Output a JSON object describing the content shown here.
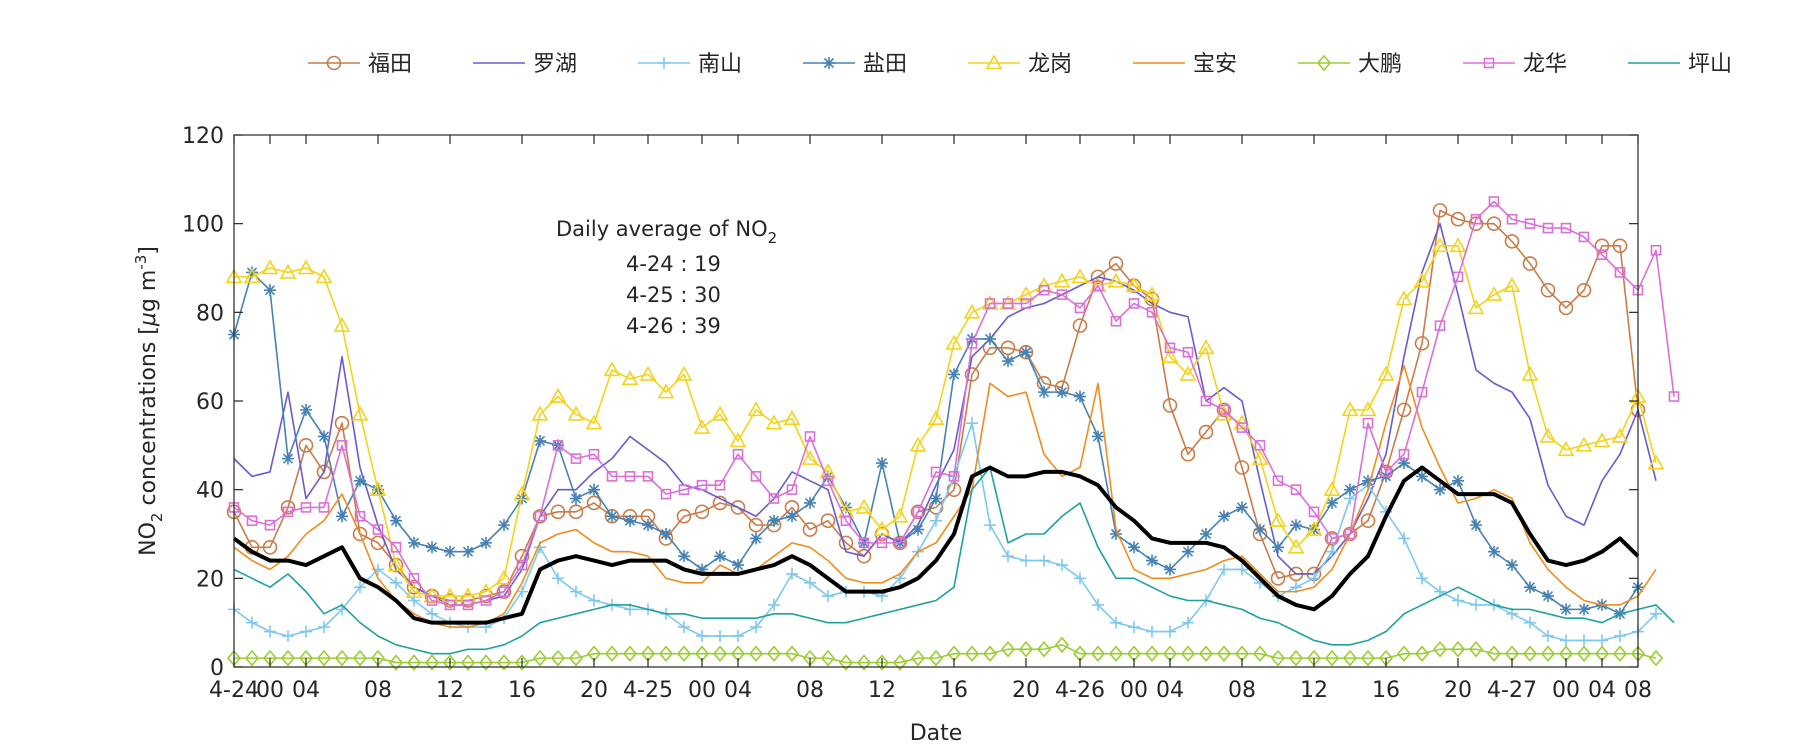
{
  "chart_data": {
    "type": "line",
    "xlabel": "Date",
    "ylabel": "NO2 concentrations [μg m-3]",
    "ylabel_parts": {
      "pre": "NO",
      "sub": "2",
      "mid": " concentrations [",
      "mu": "μ",
      "unit": "g m",
      "sup": "-3",
      "post": "]"
    },
    "ylim": [
      0,
      120
    ],
    "yticks": [
      0,
      20,
      40,
      60,
      80,
      100,
      120
    ],
    "xlim": [
      0,
      78
    ],
    "xticks": [
      {
        "x": 0,
        "label": "4-24"
      },
      {
        "x": 2,
        "label": "00"
      },
      {
        "x": 4,
        "label": "04"
      },
      {
        "x": 8,
        "label": "08"
      },
      {
        "x": 12,
        "label": "12"
      },
      {
        "x": 16,
        "label": "16"
      },
      {
        "x": 20,
        "label": "20"
      },
      {
        "x": 23,
        "label": "4-25"
      },
      {
        "x": 26,
        "label": "00"
      },
      {
        "x": 28,
        "label": "04"
      },
      {
        "x": 32,
        "label": "08"
      },
      {
        "x": 36,
        "label": "12"
      },
      {
        "x": 40,
        "label": "16"
      },
      {
        "x": 44,
        "label": "20"
      },
      {
        "x": 47,
        "label": "4-26"
      },
      {
        "x": 50,
        "label": "00"
      },
      {
        "x": 52,
        "label": "04"
      },
      {
        "x": 56,
        "label": "08"
      },
      {
        "x": 60,
        "label": "12"
      },
      {
        "x": 64,
        "label": "16"
      },
      {
        "x": 68,
        "label": "20"
      },
      {
        "x": 71,
        "label": "4-27"
      },
      {
        "x": 74,
        "label": "00"
      },
      {
        "x": 76,
        "label": "04"
      },
      {
        "x": 78,
        "label": "08"
      }
    ],
    "grid": false,
    "legend_position": "top",
    "annotation": {
      "title_pre": "Daily average of NO",
      "title_sub": "2",
      "lines": [
        "4-24 : 19",
        "4-25 : 30",
        "4-26 : 39"
      ]
    },
    "series": [
      {
        "name": "福田",
        "color": "#c97c48",
        "marker": "circle",
        "values": [
          35,
          27,
          27,
          36,
          50,
          44,
          55,
          30,
          28,
          23,
          18,
          16,
          15,
          15,
          16,
          17,
          25,
          34,
          35,
          35,
          37,
          34,
          34,
          34,
          29,
          34,
          35,
          37,
          36,
          32,
          32,
          36,
          31,
          33,
          28,
          25,
          30,
          28,
          35,
          36,
          40,
          66,
          72,
          72,
          71,
          64,
          63,
          77,
          88,
          91,
          86,
          83,
          59,
          48,
          53,
          58,
          45,
          30,
          20,
          21,
          21,
          29,
          30,
          33,
          44,
          58,
          73,
          103,
          101,
          100,
          100,
          96,
          91,
          85,
          81,
          85,
          95,
          95,
          58
        ]
      },
      {
        "name": "罗湖",
        "color": "#6a5acd",
        "marker": "none",
        "values": [
          47,
          43,
          44,
          62,
          38,
          44,
          70,
          45,
          32,
          22,
          18,
          16,
          14,
          14,
          15,
          16,
          22,
          34,
          40,
          40,
          44,
          47,
          52,
          49,
          46,
          41,
          40,
          38,
          36,
          34,
          38,
          44,
          42,
          40,
          26,
          25,
          30,
          28,
          32,
          41,
          49,
          70,
          74,
          79,
          81,
          82,
          84,
          86,
          88,
          87,
          85,
          82,
          80,
          79,
          60,
          63,
          60,
          42,
          25,
          21,
          21,
          25,
          30,
          38,
          48,
          70,
          89,
          100,
          84,
          67,
          64,
          62,
          56,
          41,
          34,
          32,
          42,
          48,
          58,
          42
        ]
      },
      {
        "name": "南山",
        "color": "#7ec8f0",
        "marker": "plus",
        "values": [
          13,
          10,
          8,
          7,
          8,
          9,
          13,
          18,
          22,
          19,
          15,
          12,
          10,
          9,
          9,
          11,
          17,
          27,
          20,
          17,
          15,
          14,
          13,
          13,
          12,
          9,
          7,
          7,
          7,
          9,
          14,
          21,
          19,
          16,
          17,
          17,
          16,
          20,
          26,
          33,
          43,
          55,
          32,
          25,
          24,
          24,
          23,
          20,
          14,
          10,
          9,
          8,
          8,
          10,
          15,
          22,
          22,
          19,
          16,
          18,
          20,
          26,
          38,
          41,
          35,
          29,
          20,
          17,
          15,
          14,
          14,
          12,
          10,
          7,
          6,
          6,
          6,
          7,
          8,
          12
        ]
      },
      {
        "name": "盐田",
        "color": "#4682b4",
        "marker": "star",
        "values": [
          75,
          89,
          85,
          47,
          58,
          52,
          34,
          42,
          40,
          33,
          28,
          27,
          26,
          26,
          28,
          32,
          38,
          51,
          50,
          38,
          40,
          34,
          33,
          32,
          30,
          25,
          22,
          25,
          23,
          29,
          33,
          34,
          37,
          43,
          36,
          28,
          46,
          28,
          31,
          38,
          66,
          74,
          74,
          69,
          71,
          62,
          62,
          61,
          52,
          30,
          27,
          24,
          22,
          26,
          30,
          34,
          36,
          31,
          27,
          32,
          31,
          37,
          40,
          42,
          43,
          46,
          43,
          40,
          42,
          32,
          26,
          23,
          18,
          16,
          13,
          13,
          14,
          12,
          18
        ]
      },
      {
        "name": "龙岗",
        "color": "#f5d21a",
        "marker": "triangle",
        "values": [
          88,
          88,
          90,
          89,
          90,
          88,
          77,
          57,
          40,
          23,
          17,
          16,
          16,
          16,
          17,
          20,
          39,
          57,
          61,
          57,
          55,
          67,
          65,
          66,
          62,
          66,
          54,
          57,
          51,
          58,
          55,
          56,
          47,
          44,
          35,
          36,
          31,
          34,
          50,
          56,
          73,
          80,
          82,
          82,
          84,
          86,
          87,
          88,
          86,
          87,
          86,
          84,
          70,
          66,
          72,
          57,
          55,
          47,
          33,
          27,
          31,
          40,
          58,
          58,
          66,
          83,
          87,
          95,
          95,
          81,
          84,
          86,
          66,
          52,
          49,
          50,
          51,
          52,
          61,
          46
        ]
      },
      {
        "name": "宝安",
        "color": "#f08c1e",
        "marker": "none",
        "values": [
          27,
          24,
          22,
          25,
          30,
          33,
          39,
          30,
          20,
          15,
          12,
          10,
          9,
          9,
          10,
          12,
          19,
          28,
          30,
          31,
          28,
          26,
          26,
          25,
          20,
          19,
          19,
          23,
          21,
          22,
          25,
          28,
          27,
          24,
          20,
          19,
          19,
          21,
          26,
          28,
          34,
          40,
          64,
          61,
          62,
          48,
          43,
          45,
          64,
          31,
          22,
          20,
          20,
          21,
          22,
          24,
          25,
          21,
          17,
          17,
          18,
          22,
          30,
          40,
          55,
          68,
          54,
          45,
          37,
          38,
          40,
          38,
          28,
          22,
          18,
          15,
          14,
          14,
          16,
          22
        ]
      },
      {
        "name": "大鹏",
        "color": "#9acd32",
        "marker": "diamond",
        "values": [
          2,
          2,
          2,
          2,
          2,
          2,
          2,
          2,
          2,
          1,
          1,
          1,
          1,
          1,
          1,
          1,
          1,
          2,
          2,
          2,
          3,
          3,
          3,
          3,
          3,
          3,
          3,
          3,
          3,
          3,
          3,
          3,
          2,
          2,
          1,
          1,
          1,
          1,
          2,
          2,
          3,
          3,
          3,
          4,
          4,
          4,
          5,
          3,
          3,
          3,
          3,
          3,
          3,
          3,
          3,
          3,
          3,
          3,
          2,
          2,
          2,
          2,
          2,
          2,
          2,
          3,
          3,
          4,
          4,
          4,
          3,
          3,
          3,
          3,
          3,
          3,
          3,
          3,
          3,
          2
        ]
      },
      {
        "name": "龙华",
        "color": "#da70d6",
        "marker": "square",
        "values": [
          36,
          33,
          32,
          35,
          36,
          36,
          50,
          34,
          31,
          27,
          20,
          15,
          14,
          14,
          15,
          17,
          23,
          34,
          50,
          47,
          48,
          43,
          43,
          43,
          39,
          40,
          41,
          41,
          48,
          43,
          38,
          40,
          52,
          42,
          33,
          28,
          28,
          28,
          35,
          44,
          43,
          73,
          82,
          82,
          82,
          85,
          84,
          81,
          86,
          78,
          82,
          80,
          72,
          71,
          60,
          58,
          54,
          50,
          42,
          40,
          35,
          29,
          30,
          55,
          44,
          48,
          62,
          77,
          88,
          101,
          105,
          101,
          100,
          99,
          99,
          97,
          93,
          89,
          85,
          94,
          61
        ]
      },
      {
        "name": "坪山",
        "color": "#20a0a0",
        "marker": "none",
        "values": [
          22,
          20,
          18,
          21,
          17,
          12,
          14,
          10,
          7,
          5,
          4,
          3,
          3,
          4,
          4,
          5,
          7,
          10,
          11,
          12,
          13,
          14,
          14,
          13,
          12,
          12,
          11,
          11,
          11,
          11,
          12,
          12,
          11,
          10,
          10,
          11,
          12,
          13,
          14,
          15,
          18,
          40,
          45,
          28,
          30,
          30,
          34,
          37,
          27,
          20,
          20,
          18,
          16,
          15,
          15,
          14,
          13,
          11,
          10,
          8,
          6,
          5,
          5,
          6,
          8,
          12,
          14,
          16,
          18,
          16,
          14,
          13,
          13,
          12,
          11,
          11,
          10,
          12,
          13,
          14,
          10
        ]
      },
      {
        "name": "",
        "color": "#000000",
        "marker": "none",
        "width": 4,
        "values": [
          29,
          26,
          24,
          24,
          23,
          25,
          27,
          20,
          18,
          15,
          11,
          10,
          10,
          10,
          10,
          11,
          12,
          22,
          24,
          25,
          24,
          23,
          24,
          24,
          24,
          22,
          21,
          21,
          21,
          22,
          23,
          25,
          23,
          20,
          17,
          17,
          17,
          18,
          20,
          24,
          30,
          43,
          45,
          43,
          43,
          44,
          44,
          43,
          41,
          36,
          33,
          29,
          28,
          28,
          28,
          27,
          24,
          20,
          16,
          14,
          13,
          16,
          21,
          25,
          34,
          42,
          45,
          42,
          39,
          39,
          39,
          37,
          30,
          24,
          23,
          24,
          26,
          29,
          25
        ]
      }
    ]
  }
}
